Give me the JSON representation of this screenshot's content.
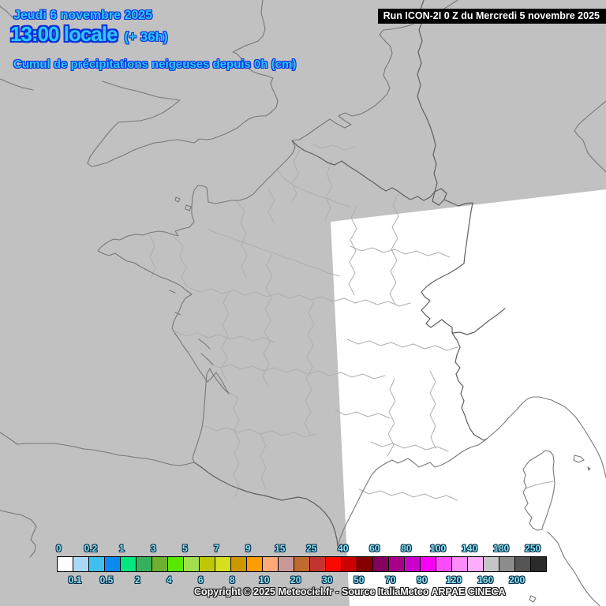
{
  "header": {
    "date_line": "Jeudi 6 novembre 2025",
    "time_line": "13:00 locale",
    "time_offset": "(+ 36h)",
    "parameter": "Cumul de précipitations neigeuses depuis 0h (cm)",
    "run_info": "Run ICON-2I 0 Z du Mercredi 5 novembre 2025"
  },
  "scale": {
    "unit": "cm",
    "labels": [
      "0",
      "0.1",
      "0.2",
      "0.5",
      "1",
      "2",
      "3",
      "4",
      "5",
      "6",
      "7",
      "8",
      "9",
      "10",
      "15",
      "20",
      "25",
      "30",
      "40",
      "50",
      "60",
      "70",
      "80",
      "90",
      "100",
      "120",
      "140",
      "160",
      "180",
      "200",
      "250"
    ],
    "colors": [
      "#FFFFFF",
      "#A9D9F7",
      "#3FBFF0",
      "#0A89F0",
      "#00E87F",
      "#35B15E",
      "#6FB02E",
      "#58E800",
      "#A2DE4E",
      "#BFC708",
      "#D6DF1E",
      "#CC9800",
      "#FF9C00",
      "#FFA878",
      "#C89898",
      "#C06A30",
      "#C23430",
      "#FB0800",
      "#CC0000",
      "#840000",
      "#85005D",
      "#A9008C",
      "#CB00CB",
      "#F800F8",
      "#FB4BFB",
      "#FB8DFB",
      "#FCAEFC",
      "#C5C5C5",
      "#8D8D8D",
      "#555555",
      "#2B2B2B"
    ]
  },
  "footer": {
    "copyright": "Copyright © 2025 Meteociel.fr - Source ItaliaMeteo ARPAE CINECA"
  },
  "colors": {
    "map_background": "#C1C1C1",
    "model_domain_fill": "#FFFFFF",
    "title_text": "#2BC8FF",
    "title_outline": "#0D2FD6",
    "scale_label_text": "#86E8F0",
    "run_bar_background": "#000000",
    "run_bar_text": "#FFFFFF"
  }
}
